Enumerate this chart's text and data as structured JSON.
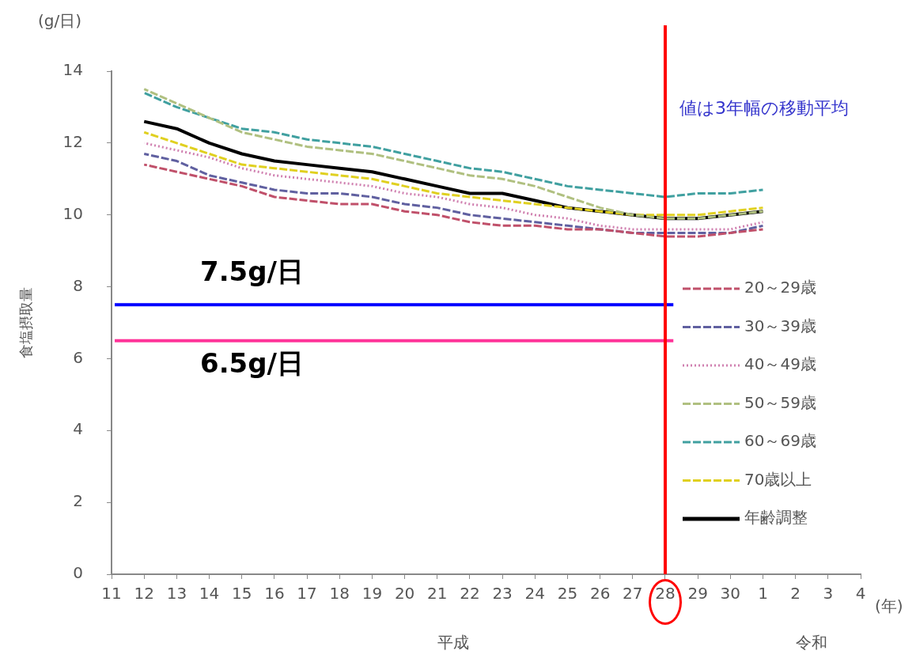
{
  "chart_data": {
    "type": "line",
    "ylabel": "食塩摂取量",
    "xlabel": "(年)",
    "categories": [
      "11",
      "12",
      "13",
      "14",
      "15",
      "16",
      "17",
      "18",
      "19",
      "20",
      "21",
      "22",
      "23",
      "24",
      "25",
      "26",
      "27",
      "28",
      "29",
      "30",
      "1",
      "2",
      "3",
      "4"
    ],
    "series": [
      {
        "name": "20～29歳",
        "color": "#c0506a",
        "line_style": "dashed",
        "values": [
          null,
          11.4,
          11.2,
          11.0,
          10.8,
          10.5,
          10.4,
          10.3,
          10.3,
          10.1,
          10.0,
          9.8,
          9.7,
          9.7,
          9.6,
          9.6,
          9.5,
          9.4,
          9.4,
          9.5,
          9.6,
          null,
          null,
          null
        ]
      },
      {
        "name": "30～39歳",
        "color": "#6060a0",
        "line_style": "dashed",
        "values": [
          null,
          11.7,
          11.5,
          11.1,
          10.9,
          10.7,
          10.6,
          10.6,
          10.5,
          10.3,
          10.2,
          10.0,
          9.9,
          9.8,
          9.7,
          9.6,
          9.5,
          9.5,
          9.5,
          9.5,
          9.7,
          null,
          null,
          null
        ]
      },
      {
        "name": "40～49歳",
        "color": "#d080b0",
        "line_style": "dotted",
        "values": [
          null,
          12.0,
          11.8,
          11.6,
          11.3,
          11.1,
          11.0,
          10.9,
          10.8,
          10.6,
          10.5,
          10.3,
          10.2,
          10.0,
          9.9,
          9.7,
          9.6,
          9.6,
          9.6,
          9.6,
          9.8,
          null,
          null,
          null
        ]
      },
      {
        "name": "50～59歳",
        "color": "#b0c080",
        "line_style": "dashed",
        "values": [
          null,
          13.5,
          13.1,
          12.7,
          12.3,
          12.1,
          11.9,
          11.8,
          11.7,
          11.5,
          11.3,
          11.1,
          11.0,
          10.8,
          10.5,
          10.2,
          10.0,
          9.9,
          9.9,
          10.0,
          10.1,
          null,
          null,
          null
        ]
      },
      {
        "name": "60～69歳",
        "color": "#40a0a0",
        "line_style": "dashed",
        "values": [
          null,
          13.4,
          13.0,
          12.7,
          12.4,
          12.3,
          12.1,
          12.0,
          11.9,
          11.7,
          11.5,
          11.3,
          11.2,
          11.0,
          10.8,
          10.7,
          10.6,
          10.5,
          10.6,
          10.6,
          10.7,
          null,
          null,
          null
        ]
      },
      {
        "name": "70歳以上",
        "color": "#e0d020",
        "line_style": "dashed",
        "values": [
          null,
          12.3,
          12.0,
          11.7,
          11.4,
          11.3,
          11.2,
          11.1,
          11.0,
          10.8,
          10.6,
          10.5,
          10.4,
          10.3,
          10.2,
          10.1,
          10.0,
          10.0,
          10.0,
          10.1,
          10.2,
          null,
          null,
          null
        ]
      },
      {
        "name": "年齢調整",
        "color": "#000000",
        "line_style": "solid",
        "values": [
          null,
          12.6,
          12.4,
          12.0,
          11.7,
          11.5,
          11.4,
          11.3,
          11.2,
          11.0,
          10.8,
          10.6,
          10.6,
          10.4,
          10.2,
          10.1,
          10.0,
          9.9,
          9.9,
          10.0,
          10.1,
          null,
          null,
          null
        ]
      }
    ],
    "ylim": [
      0,
      14
    ],
    "yticks": [
      0,
      2,
      4,
      6,
      8,
      10,
      12,
      14
    ],
    "grid": false,
    "legend": "right",
    "marker": "none",
    "ref_lines": [
      {
        "axis": "y",
        "value": 7.5,
        "label": "7.5g/日",
        "color": "#0000ff"
      },
      {
        "axis": "y",
        "value": 6.5,
        "label": "6.5g/日",
        "color": "#ff3399"
      },
      {
        "axis": "x",
        "value": "28",
        "color": "#ff0000"
      }
    ],
    "annotations": [
      "値は3年幅の移動平均",
      "(g/日)",
      "平成",
      "令和"
    ]
  }
}
